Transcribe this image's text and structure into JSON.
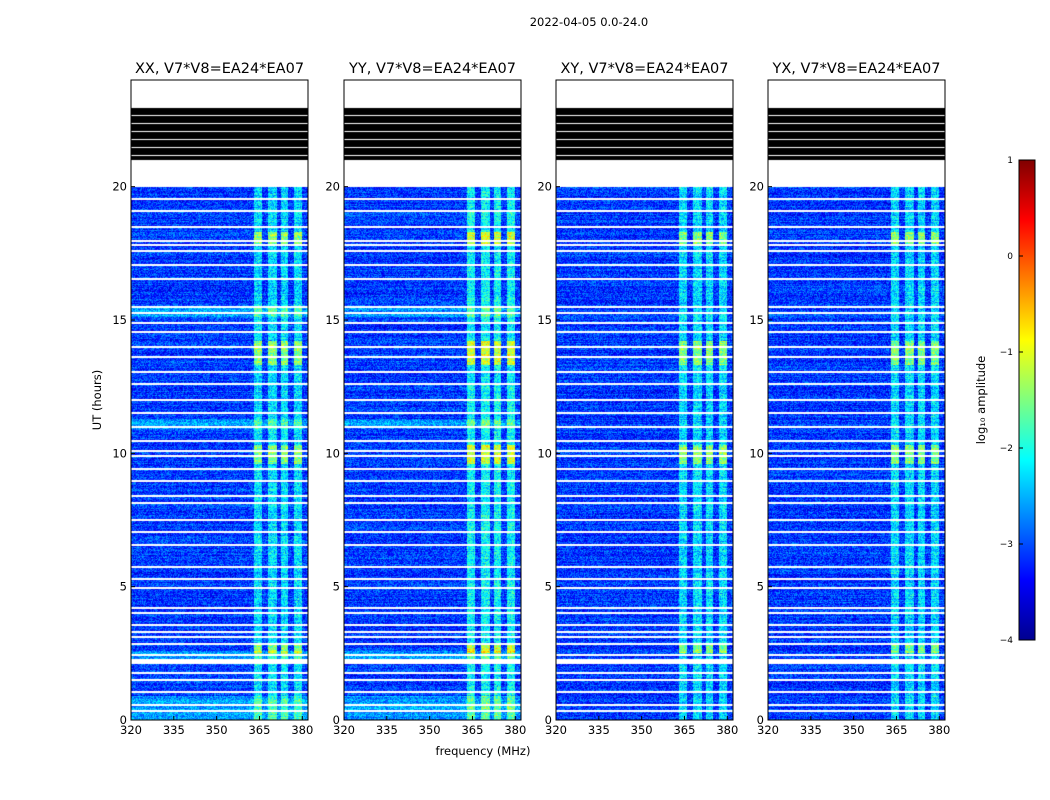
{
  "figure": {
    "suptitle": "2022-04-05 0.0-24.0",
    "xlabel": "frequency (MHz)",
    "ylabel": "UT (hours)",
    "colorbar_label": "log₁₀ amplitude",
    "colorbar_ticks": [
      "1",
      "0",
      "−1",
      "−2",
      "−3",
      "−4"
    ]
  },
  "chart_data": {
    "type": "heatmap",
    "colormap": "jet",
    "x_range": [
      320,
      382
    ],
    "y_range": [
      0,
      24
    ],
    "color_range": [
      -4,
      1
    ],
    "x_ticks": [
      320,
      335,
      350,
      365,
      380
    ],
    "x_tick_labels": [
      "320",
      "335",
      "350",
      "365",
      "380"
    ],
    "y_ticks": [
      0,
      5,
      10,
      15,
      20
    ],
    "y_tick_labels": [
      "0",
      "5",
      "10",
      "15",
      "20"
    ],
    "background_level": -3.1,
    "panels": [
      {
        "title": "XX, V7*V8=EA24*EA07",
        "band_strength": 1.0,
        "lowband_strength": 0.9
      },
      {
        "title": "YY, V7*V8=EA24*EA07",
        "band_strength": 1.25,
        "lowband_strength": 0.8
      },
      {
        "title": "XY, V7*V8=EA24*EA07",
        "band_strength": 1.0,
        "lowband_strength": 0.0
      },
      {
        "title": "YX, V7*V8=EA24*EA07",
        "band_strength": 1.0,
        "lowband_strength": 0.0
      }
    ],
    "no_data_ut_ranges": [
      [
        20.0,
        21.0
      ],
      [
        23.0,
        24.0
      ],
      [
        2.1,
        2.3
      ]
    ],
    "flagged_block_ut_range": [
      21.0,
      23.0
    ],
    "flagged_lines_ut": [
      0.35,
      0.55,
      1.05,
      1.5,
      1.75,
      2.45,
      2.85,
      3.1,
      3.3,
      3.55,
      4.0,
      4.2,
      4.95,
      5.3,
      5.75,
      6.55,
      7.05,
      7.5,
      8.15,
      8.4,
      8.95,
      9.4,
      9.9,
      10.1,
      10.45,
      11.0,
      11.5,
      12.0,
      12.6,
      13.05,
      13.6,
      14.0,
      14.55,
      14.9,
      15.25,
      15.5,
      16.55,
      17.05,
      17.6,
      17.8,
      17.95,
      18.5,
      19.1,
      19.55
    ],
    "rfi_bands_mhz": [
      [
        363,
        366
      ],
      [
        368,
        371
      ],
      [
        372.5,
        375
      ],
      [
        377,
        380
      ]
    ],
    "bright_ut_ranges": [
      [
        13.3,
        14.2
      ],
      [
        17.8,
        18.3
      ],
      [
        9.6,
        10.3
      ],
      [
        2.5,
        2.8
      ]
    ],
    "lowband_ut_ranges": [
      [
        0.0,
        0.9
      ],
      [
        2.3,
        2.6
      ],
      [
        10.9,
        11.3
      ],
      [
        15.1,
        15.45
      ]
    ]
  }
}
